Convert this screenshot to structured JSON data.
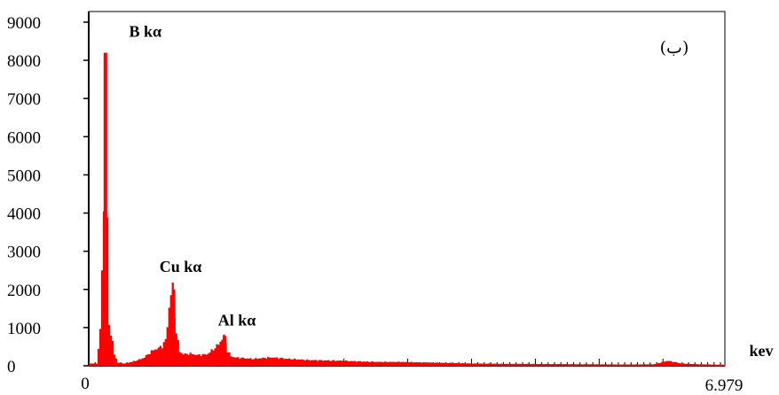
{
  "chart_data": {
    "type": "bar",
    "title": "",
    "panel_label": "(ب)",
    "xlabel": "",
    "ylabel": "",
    "x_unit_label": "kev",
    "x_tick_labels": [
      "0",
      "6.979"
    ],
    "xlim": [
      0,
      6.979
    ],
    "ylim": [
      0,
      9000
    ],
    "y_ticks": [
      0,
      1000,
      2000,
      3000,
      4000,
      5000,
      6000,
      7000,
      8000,
      9000
    ],
    "grid": false,
    "legend": "none",
    "bar_color": "#ff0000",
    "peaks": [
      {
        "label": "B kα",
        "x": 0.183,
        "y": 8200
      },
      {
        "label": "Cu kα",
        "x": 0.93,
        "y": 2000
      },
      {
        "label": "Al kα",
        "x": 1.49,
        "y": 780
      }
    ],
    "spectrum": {
      "x": [
        0.1,
        0.13,
        0.16,
        0.18,
        0.19,
        0.2,
        0.22,
        0.25,
        0.28,
        0.32,
        0.4,
        0.5,
        0.6,
        0.7,
        0.75,
        0.8,
        0.85,
        0.88,
        0.9,
        0.92,
        0.93,
        0.95,
        1.0,
        1.05,
        1.1,
        1.2,
        1.3,
        1.4,
        1.45,
        1.48,
        1.49,
        1.52,
        1.56,
        1.6,
        1.7,
        1.8,
        2.0,
        2.2,
        2.4,
        2.6,
        2.8,
        3.0,
        3.2,
        3.4,
        3.6,
        3.8,
        4.0,
        4.2,
        4.4,
        4.6,
        4.8,
        5.0,
        5.2,
        5.4,
        5.6,
        5.8,
        6.0,
        6.2,
        6.3,
        6.35,
        6.4,
        6.5,
        6.7,
        6.9
      ],
      "counts": [
        300,
        1000,
        4000,
        4100,
        8200,
        4100,
        1100,
        800,
        300,
        80,
        60,
        120,
        200,
        400,
        450,
        500,
        700,
        1500,
        1900,
        2000,
        1700,
        1000,
        350,
        300,
        320,
        280,
        300,
        500,
        650,
        780,
        730,
        400,
        250,
        220,
        200,
        180,
        220,
        180,
        150,
        140,
        130,
        110,
        100,
        100,
        90,
        80,
        70,
        60,
        55,
        50,
        50,
        45,
        45,
        40,
        40,
        35,
        35,
        40,
        100,
        130,
        110,
        60,
        40,
        30
      ]
    }
  }
}
